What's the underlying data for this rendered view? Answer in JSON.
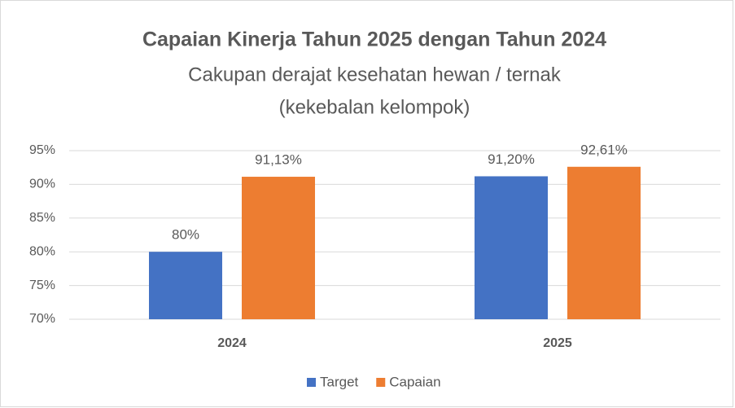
{
  "chart_data": {
    "type": "bar",
    "title": "Capaian Kinerja Tahun 2025 dengan Tahun 2024",
    "subtitle": [
      "Cakupan derajat kesehatan hewan / ternak",
      "(kekebalan kelompok)"
    ],
    "categories": [
      "2024",
      "2025"
    ],
    "series": [
      {
        "name": "Target",
        "color": "#4472c4",
        "values": [
          80,
          91.2
        ],
        "value_labels": [
          "80%",
          "91,20%"
        ]
      },
      {
        "name": "Capaian",
        "color": "#ed7d31",
        "values": [
          91.13,
          92.61
        ],
        "value_labels": [
          "91,13%",
          "92,61%"
        ]
      }
    ],
    "ylim": [
      70,
      95
    ],
    "yticks": [
      {
        "value": 70,
        "label": "70%"
      },
      {
        "value": 75,
        "label": "75%"
      },
      {
        "value": 80,
        "label": "80%"
      },
      {
        "value": 85,
        "label": "85%"
      },
      {
        "value": 90,
        "label": "90%"
      },
      {
        "value": 95,
        "label": "95%"
      }
    ],
    "grid": true,
    "legend": "bottom"
  }
}
